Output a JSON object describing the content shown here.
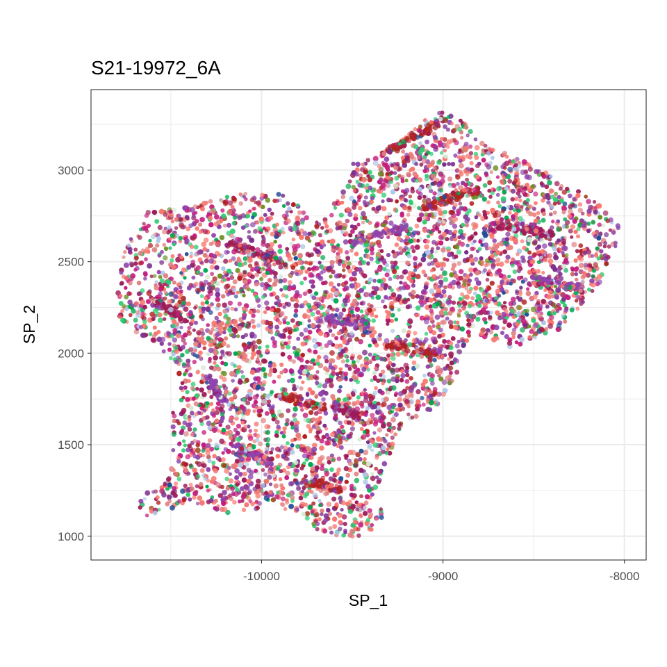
{
  "chart_data": {
    "type": "scatter",
    "title": "S21-19972_6A",
    "xlabel": "SP_1",
    "ylabel": "SP_2",
    "xlim": [
      -10940,
      -7880
    ],
    "ylim": [
      870,
      3440
    ],
    "x_ticks": [
      {
        "value": -10000,
        "label": "-10000"
      },
      {
        "value": -9000,
        "label": "-9000"
      },
      {
        "value": -8000,
        "label": "-8000"
      }
    ],
    "y_ticks": [
      {
        "value": 1000,
        "label": "1000"
      },
      {
        "value": 1500,
        "label": "1500"
      },
      {
        "value": 2000,
        "label": "2000"
      },
      {
        "value": 2500,
        "label": "2500"
      },
      {
        "value": 3000,
        "label": "3000"
      }
    ],
    "x_minor_breaks": [
      -10500,
      -9500,
      -8500
    ],
    "y_minor_breaks": [
      1250,
      1750,
      2250,
      2750,
      3250
    ],
    "grid": true,
    "legend": "none",
    "point_palette": [
      "#F8766D",
      "#9E1B57",
      "#C51B7D",
      "#8E44AD",
      "#B22222",
      "#2ECC71",
      "#00A651",
      "#6B8E23",
      "#AEC7E8",
      "#1F4E96",
      "#E08080",
      "#D3E8D3",
      "#A0522D",
      "#7B2D8E"
    ],
    "point_weights": [
      16,
      14,
      9,
      10,
      4,
      6,
      4,
      2,
      4,
      1.5,
      10,
      2,
      1,
      8
    ],
    "region_outline": [
      [
        -10800,
        2350
      ],
      [
        -10770,
        2500
      ],
      [
        -10740,
        2600
      ],
      [
        -10680,
        2680
      ],
      [
        -10620,
        2780
      ],
      [
        -10480,
        2790
      ],
      [
        -10350,
        2820
      ],
      [
        -10150,
        2870
      ],
      [
        -9950,
        2880
      ],
      [
        -9840,
        2860
      ],
      [
        -9760,
        2780
      ],
      [
        -9660,
        2740
      ],
      [
        -9560,
        2880
      ],
      [
        -9490,
        2990
      ],
      [
        -9510,
        3050
      ],
      [
        -9420,
        3060
      ],
      [
        -9350,
        3090
      ],
      [
        -9200,
        3200
      ],
      [
        -9100,
        3280
      ],
      [
        -9000,
        3320
      ],
      [
        -8900,
        3280
      ],
      [
        -8840,
        3200
      ],
      [
        -8760,
        3150
      ],
      [
        -8680,
        3120
      ],
      [
        -8560,
        3050
      ],
      [
        -8440,
        2990
      ],
      [
        -8320,
        2930
      ],
      [
        -8200,
        2860
      ],
      [
        -8100,
        2780
      ],
      [
        -8030,
        2690
      ],
      [
        -8040,
        2570
      ],
      [
        -8100,
        2450
      ],
      [
        -8150,
        2360
      ],
      [
        -8230,
        2260
      ],
      [
        -8320,
        2150
      ],
      [
        -8470,
        2080
      ],
      [
        -8560,
        2010
      ],
      [
        -8700,
        2060
      ],
      [
        -8840,
        2120
      ],
      [
        -8880,
        2040
      ],
      [
        -8920,
        1900
      ],
      [
        -8980,
        1780
      ],
      [
        -9050,
        1690
      ],
      [
        -9200,
        1630
      ],
      [
        -9260,
        1510
      ],
      [
        -9320,
        1400
      ],
      [
        -9330,
        1290
      ],
      [
        -9300,
        1150
      ],
      [
        -9330,
        1080
      ],
      [
        -9420,
        1000
      ],
      [
        -9580,
        990
      ],
      [
        -9720,
        1050
      ],
      [
        -9800,
        1140
      ],
      [
        -9980,
        1160
      ],
      [
        -10150,
        1120
      ],
      [
        -10280,
        1140
      ],
      [
        -10420,
        1180
      ],
      [
        -10560,
        1120
      ],
      [
        -10690,
        1090
      ],
      [
        -10660,
        1220
      ],
      [
        -10520,
        1300
      ],
      [
        -10480,
        1520
      ],
      [
        -10500,
        1720
      ],
      [
        -10450,
        1880
      ],
      [
        -10530,
        2000
      ],
      [
        -10660,
        2080
      ],
      [
        -10790,
        2200
      ]
    ],
    "dense_streaks": [
      [
        -10300,
        1870,
        -10200,
        1730
      ],
      [
        -9900,
        1770,
        -9650,
        1700
      ],
      [
        -9600,
        1720,
        -9450,
        1650
      ],
      [
        -9700,
        2200,
        -9400,
        2150
      ],
      [
        -9300,
        2050,
        -9050,
        2000
      ],
      [
        -10200,
        2600,
        -9900,
        2500
      ],
      [
        -9500,
        2600,
        -9200,
        2700
      ],
      [
        -9100,
        2800,
        -8800,
        2900
      ],
      [
        -8700,
        2700,
        -8400,
        2650
      ],
      [
        -8500,
        2400,
        -8200,
        2350
      ],
      [
        -9300,
        3100,
        -9050,
        3250
      ],
      [
        -10600,
        2300,
        -10450,
        2200
      ],
      [
        -10150,
        1500,
        -9950,
        1400
      ],
      [
        -9750,
        1300,
        -9550,
        1250
      ]
    ]
  }
}
